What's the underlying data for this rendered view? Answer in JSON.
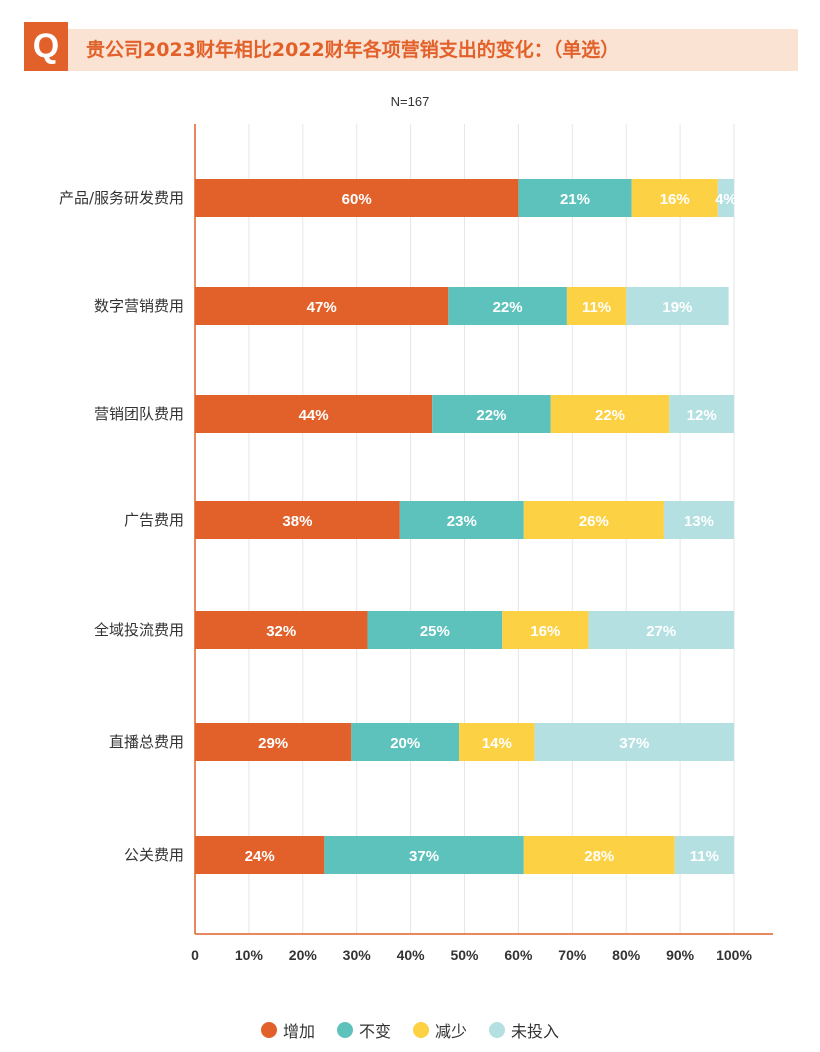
{
  "header": {
    "badge": "Q",
    "title": "贵公司2023财年相比2022财年各项营销支出的变化：（单选）"
  },
  "chart_data": {
    "type": "bar",
    "orientation": "horizontal",
    "stacked": true,
    "subtitle": "N=167",
    "categories": [
      "产品/服务研发费用",
      "数字营销费用",
      "营销团队费用",
      "广告费用",
      "全域投流费用",
      "直播总费用",
      "公关费用"
    ],
    "series": [
      {
        "name": "增加",
        "color": "#e2612a",
        "values": [
          60,
          47,
          44,
          38,
          32,
          29,
          24
        ]
      },
      {
        "name": "不变",
        "color": "#5ec2bc",
        "values": [
          21,
          22,
          22,
          23,
          25,
          20,
          37
        ]
      },
      {
        "name": "减少",
        "color": "#fdd144",
        "values": [
          16,
          11,
          22,
          26,
          16,
          14,
          28
        ]
      },
      {
        "name": "未投入",
        "color": "#b5e0e1",
        "values": [
          4,
          19,
          12,
          13,
          27,
          37,
          11
        ]
      }
    ],
    "xlim": [
      0,
      100
    ],
    "x_ticks": [
      "0",
      "10%",
      "20%",
      "30%",
      "40%",
      "50%",
      "60%",
      "70%",
      "80%",
      "90%",
      "100%"
    ],
    "grid": true,
    "legend_position": "bottom"
  }
}
